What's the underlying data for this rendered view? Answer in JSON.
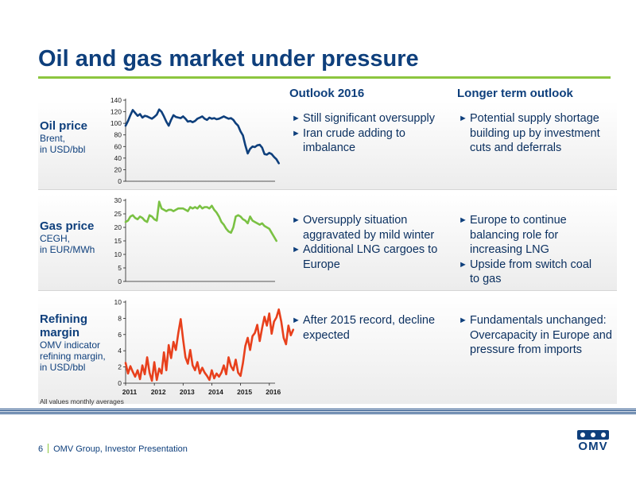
{
  "title": "Oil and gas market under pressure",
  "columns": {
    "outlook": "Outlook 2016",
    "longer": "Longer term outlook"
  },
  "rows": [
    {
      "label": "Oil price",
      "sub": [
        "Brent,",
        "in USD/bbl"
      ],
      "outlook": [
        "Still significant oversupply",
        "Iran crude adding to imbalance"
      ],
      "longer": [
        "Potential supply shortage building up by investment cuts and deferrals"
      ]
    },
    {
      "label": "Gas price",
      "sub": [
        "CEGH,",
        "in EUR/MWh"
      ],
      "outlook": [
        "Oversupply situation aggravated by mild winter",
        "Additional LNG cargoes to Europe"
      ],
      "longer": [
        "Europe to continue balancing role for increasing LNG",
        "Upside from switch coal to gas"
      ]
    },
    {
      "label": "Refining margin",
      "sub": [
        "OMV indicator",
        "refining margin,",
        "in USD/bbl"
      ],
      "outlook": [
        "After 2015 record, decline expected"
      ],
      "longer": [
        "Fundamentals unchanged: Overcapacity in Europe and pressure from imports"
      ]
    }
  ],
  "bullet_icon": "right-triangle-arrow",
  "note": "All values monthly averages",
  "footer": {
    "page": "6",
    "text": "OMV Group, Investor Presentation"
  },
  "logo": {
    "text": "OMV"
  },
  "colors": {
    "oil": "#0e3f7c",
    "gas": "#7ac143",
    "refining": "#e8401c",
    "accent": "#8cc63f",
    "brand": "#0e3f7c"
  },
  "chart_data": [
    {
      "type": "line",
      "series": [
        {
          "x_start": 2011.0,
          "x_step": 0.0833,
          "values": [
            96,
            104,
            114,
            123,
            118,
            113,
            116,
            110,
            113,
            112,
            110,
            108,
            111,
            115,
            124,
            120,
            112,
            103,
            96,
            106,
            114,
            111,
            110,
            109,
            112,
            108,
            103,
            104,
            102,
            104,
            108,
            110,
            112,
            108,
            106,
            110,
            108,
            109,
            107,
            108,
            110,
            112,
            110,
            108,
            109,
            106,
            100,
            96,
            86,
            79,
            62,
            48,
            56,
            60,
            59,
            62,
            63,
            58,
            47,
            46,
            49,
            47,
            42,
            38,
            31
          ]
        }
      ],
      "xlim": [
        2011,
        2016.2
      ],
      "ylim": [
        0,
        140
      ],
      "yticks": [
        "0",
        "20",
        "40",
        "60",
        "80",
        "100",
        "120",
        "140"
      ],
      "ytick_values": [
        0,
        20,
        40,
        60,
        80,
        100,
        120,
        140
      ],
      "grid": false
    },
    {
      "type": "line",
      "series": [
        {
          "x_start": 2011.0,
          "x_step": 0.0833,
          "values": [
            22,
            22.5,
            24,
            24.5,
            23.5,
            23,
            24,
            23.5,
            22.5,
            22,
            24.5,
            24,
            23,
            22.5,
            29.5,
            27,
            26.5,
            26,
            26.5,
            26.5,
            26,
            26.5,
            27,
            27,
            27,
            26.5,
            26,
            27.5,
            27,
            27.5,
            27,
            28,
            27,
            27.5,
            27.5,
            27,
            28,
            26.5,
            25.5,
            24,
            22,
            21,
            19.5,
            18.5,
            18,
            20,
            24,
            24.5,
            24,
            23,
            22.5,
            21.5,
            24,
            22.5,
            22,
            21.5,
            21,
            21.5,
            20.5,
            20,
            19.5,
            18,
            16.5,
            15
          ]
        }
      ],
      "xlim": [
        2011,
        2016.2
      ],
      "ylim": [
        0,
        30
      ],
      "yticks": [
        "0",
        "5",
        "10",
        "15",
        "20",
        "25",
        "30"
      ],
      "ytick_values": [
        0,
        5,
        10,
        15,
        20,
        25,
        30
      ],
      "grid": false
    },
    {
      "type": "line",
      "series": [
        {
          "x_start": 2011.0,
          "x_step": 0.0833,
          "values": [
            2.5,
            1.2,
            2.1,
            1.4,
            0.8,
            1.6,
            0.5,
            2.2,
            1.1,
            3.2,
            1.3,
            0.3,
            2.6,
            0.4,
            1.8,
            1.2,
            3.8,
            1.6,
            4.7,
            3.1,
            5.1,
            4.1,
            6.2,
            7.9,
            5.4,
            3.2,
            2.4,
            4.1,
            2.2,
            1.6,
            2.6,
            1.2,
            1.9,
            1.3,
            0.9,
            0.4,
            1.6,
            0.6,
            1.2,
            0.8,
            1.3,
            2.2,
            1.1,
            3.2,
            2.1,
            1.6,
            2.9,
            1.3,
            0.9,
            2.5,
            4.6,
            5.6,
            4.1,
            5.8,
            6.2,
            7.2,
            5.2,
            6.8,
            8.2,
            7.1,
            8.6,
            6.1,
            7.6,
            8.1,
            9.1,
            7.6,
            5.6,
            4.8,
            7.1,
            5.9,
            6.6
          ]
        }
      ],
      "xlim": [
        2011,
        2016.2
      ],
      "ylim": [
        0,
        10
      ],
      "yticks": [
        "0",
        "2",
        "4",
        "6",
        "8",
        "10"
      ],
      "ytick_values": [
        0,
        2,
        4,
        6,
        8,
        10
      ],
      "xticks": [
        "2011",
        "2012",
        "2013",
        "2014",
        "2015",
        "2016"
      ],
      "xtick_values": [
        2011,
        2012,
        2013,
        2014,
        2015,
        2016
      ],
      "grid": false
    }
  ]
}
